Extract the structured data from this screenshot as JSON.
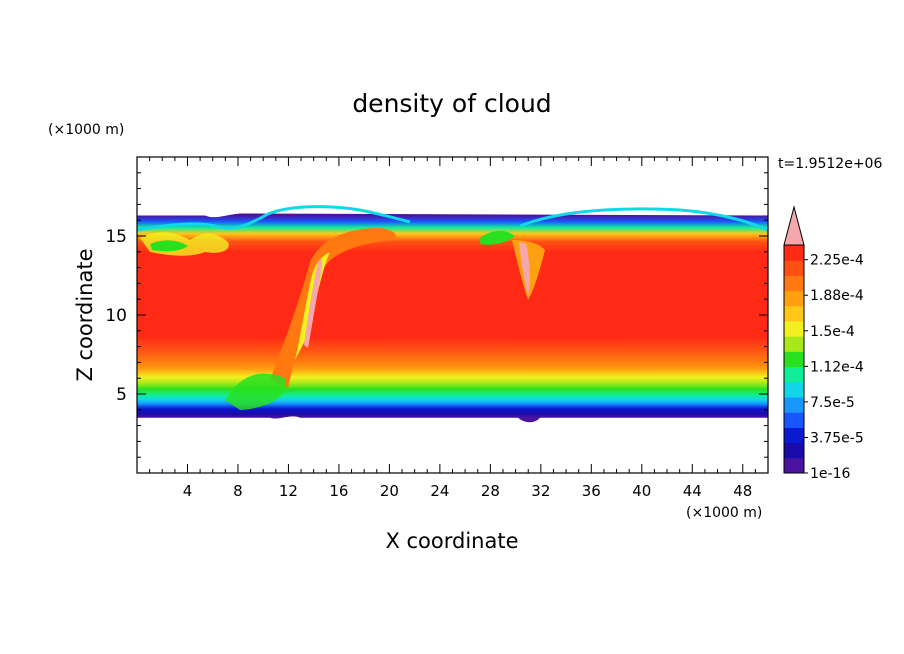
{
  "chart_data": {
    "type": "heatmap",
    "title": "density of cloud",
    "xlabel": "X coordinate",
    "ylabel": "Z coordinate",
    "x_unit": "(×1000 m)",
    "y_unit": "(×1000 m)",
    "time_label": "t=1.9512e+06",
    "xlim": [
      0,
      50
    ],
    "ylim": [
      0,
      20
    ],
    "x_ticks": [
      4,
      8,
      12,
      16,
      20,
      24,
      28,
      32,
      36,
      40,
      44,
      48
    ],
    "y_ticks": [
      5,
      10,
      15
    ],
    "colorbar": {
      "labels": [
        "1e-16",
        "3.75e-5",
        "7.5e-5",
        "1.12e-4",
        "1.5e-4",
        "1.88e-4",
        "2.25e-4"
      ],
      "colors": [
        "#4a14a0",
        "#1a0aa8",
        "#0a1ad0",
        "#1a56ff",
        "#1898ff",
        "#10d8e8",
        "#10ee9a",
        "#28e020",
        "#a6e818",
        "#f2f020",
        "#ffc818",
        "#ffa010",
        "#ff7810",
        "#ff5014",
        "#ff2a16",
        "#f4a8ae"
      ],
      "overflow_color": "#f4a8ae",
      "max_value": 0.000225
    },
    "grid": false,
    "field": {
      "cloud_base_km": 3.5,
      "cloud_top_km": 16.3,
      "core_value": 0.00023,
      "features": [
        {
          "kind": "tilted_updraft",
          "x_km": [
            12.5,
            19.5
          ],
          "z_km": [
            6,
            15.5
          ]
        },
        {
          "kind": "anvil_dome",
          "x_km": [
            30,
            50
          ],
          "z_top_km": 16.5
        },
        {
          "kind": "narrow_updraft",
          "x_km": 31,
          "z_km": [
            11,
            14.5
          ]
        }
      ]
    }
  }
}
